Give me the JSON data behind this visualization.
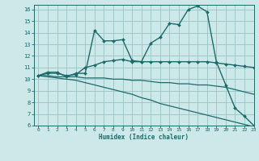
{
  "xlabel": "Humidex (Indice chaleur)",
  "bg_color": "#cce8e8",
  "grid_color": "#a0c8c8",
  "line_color": "#1a6b6b",
  "xlim": [
    -0.5,
    23
  ],
  "ylim": [
    6,
    16.4
  ],
  "xticks": [
    0,
    1,
    2,
    3,
    4,
    5,
    6,
    7,
    8,
    9,
    10,
    11,
    12,
    13,
    14,
    15,
    16,
    17,
    18,
    19,
    20,
    21,
    22,
    23
  ],
  "yticks": [
    6,
    7,
    8,
    9,
    10,
    11,
    12,
    13,
    14,
    15,
    16
  ],
  "lines": [
    {
      "x": [
        0,
        1,
        2,
        3,
        4,
        5,
        6,
        7,
        8,
        9,
        10,
        11,
        12,
        13,
        14,
        15,
        16,
        17,
        18,
        19,
        20,
        21,
        22,
        23
      ],
      "y": [
        10.3,
        10.6,
        10.6,
        10.2,
        10.5,
        10.5,
        14.2,
        13.3,
        13.3,
        13.4,
        11.6,
        11.5,
        13.1,
        13.6,
        14.8,
        14.7,
        16.0,
        16.3,
        15.8,
        11.5,
        9.5,
        7.5,
        6.8,
        6.0
      ],
      "has_marker": true,
      "markersize": 2.0,
      "linewidth": 1.0
    },
    {
      "x": [
        0,
        1,
        2,
        3,
        4,
        5,
        6,
        7,
        8,
        9,
        10,
        11,
        12,
        13,
        14,
        15,
        16,
        17,
        18,
        19,
        20,
        21,
        22,
        23
      ],
      "y": [
        10.3,
        10.5,
        10.5,
        10.3,
        10.4,
        11.0,
        11.2,
        11.5,
        11.6,
        11.7,
        11.5,
        11.5,
        11.5,
        11.5,
        11.5,
        11.5,
        11.5,
        11.5,
        11.5,
        11.4,
        11.3,
        11.2,
        11.1,
        11.0
      ],
      "has_marker": true,
      "markersize": 2.0,
      "linewidth": 1.0
    },
    {
      "x": [
        0,
        1,
        2,
        3,
        4,
        5,
        6,
        7,
        8,
        9,
        10,
        11,
        12,
        13,
        14,
        15,
        16,
        17,
        18,
        19,
        20,
        21,
        22,
        23
      ],
      "y": [
        10.3,
        10.3,
        10.2,
        10.2,
        10.2,
        10.1,
        10.1,
        10.1,
        10.0,
        10.0,
        9.9,
        9.9,
        9.8,
        9.7,
        9.7,
        9.6,
        9.6,
        9.5,
        9.5,
        9.4,
        9.3,
        9.1,
        8.9,
        8.7
      ],
      "has_marker": false,
      "markersize": 0,
      "linewidth": 0.9
    },
    {
      "x": [
        0,
        1,
        2,
        3,
        4,
        5,
        6,
        7,
        8,
        9,
        10,
        11,
        12,
        13,
        14,
        15,
        16,
        17,
        18,
        19,
        20,
        21,
        22,
        23
      ],
      "y": [
        10.3,
        10.2,
        10.1,
        10.0,
        9.9,
        9.7,
        9.5,
        9.3,
        9.1,
        8.9,
        8.7,
        8.4,
        8.2,
        7.9,
        7.7,
        7.5,
        7.3,
        7.1,
        6.9,
        6.7,
        6.5,
        6.3,
        6.1,
        5.9
      ],
      "has_marker": false,
      "markersize": 0,
      "linewidth": 0.9
    }
  ]
}
